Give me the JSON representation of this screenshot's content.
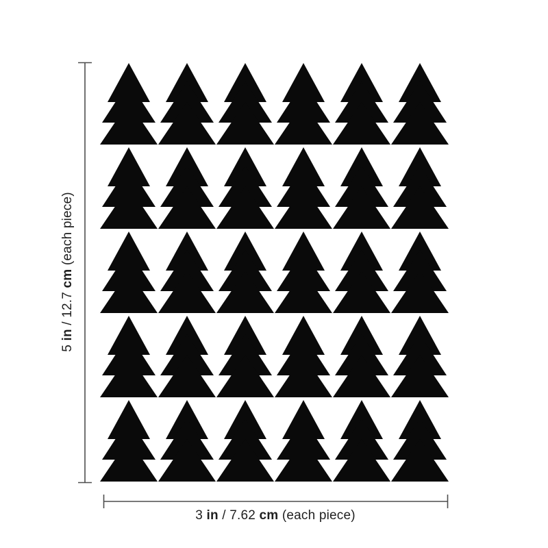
{
  "colors": {
    "background": "#ffffff",
    "tree": "#0a0a0a",
    "line": "#4d4d4d",
    "text": "#1f1f1f"
  },
  "decal_grid": {
    "shape": "pine-tree",
    "rows": 5,
    "columns": 6,
    "total_pieces": 30
  },
  "labels": {
    "height": {
      "num_in": "5",
      "unit_in": "in",
      "slash": "/",
      "num_cm": "12.7",
      "unit_cm": "cm",
      "suffix": "(each piece)"
    },
    "width": {
      "num_in": "3",
      "unit_in": "in",
      "slash": "/",
      "num_cm": "7.62",
      "unit_cm": "cm",
      "suffix": "(each piece)"
    }
  }
}
